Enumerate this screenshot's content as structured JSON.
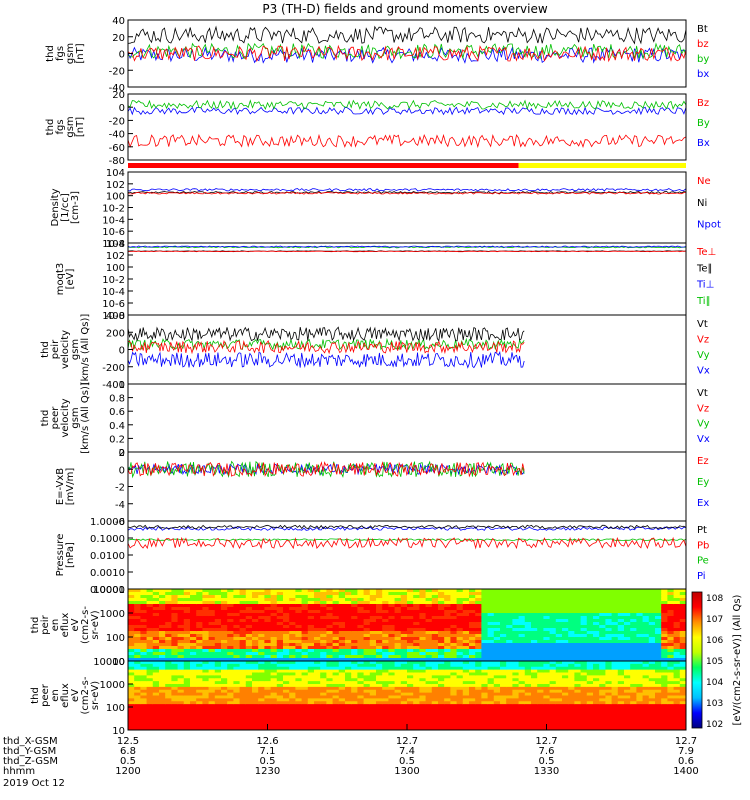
{
  "title": "P3 (TH-D) fields and ground moments overview",
  "chart_data": [
    {
      "type": "line",
      "ylabel": [
        "thd",
        "fgs",
        "gsm",
        "[nT]"
      ],
      "ylim": [
        -40,
        40
      ],
      "yticks": [
        40,
        20,
        0,
        -20,
        -40
      ],
      "series": [
        {
          "name": "Bt",
          "color": "#000000",
          "level": 22,
          "amp": 10
        },
        {
          "name": "bz",
          "color": "#ff0000",
          "level": 0,
          "amp": 9
        },
        {
          "name": "by",
          "color": "#00c000",
          "level": 3,
          "amp": 9
        },
        {
          "name": "bx",
          "color": "#0000ff",
          "level": -2,
          "amp": 9
        }
      ]
    },
    {
      "type": "line",
      "ylabel": [
        "thd",
        "fgs",
        "gsm",
        "[nT]"
      ],
      "ylim": [
        -90,
        20
      ],
      "yticks": [
        20,
        0,
        -20,
        -40,
        -60,
        -80
      ],
      "series": [
        {
          "name": "Bz",
          "color": "#ff0000",
          "level": -58,
          "amp": 10
        },
        {
          "name": "By",
          "color": "#00c000",
          "level": 2,
          "amp": 7
        },
        {
          "name": "Bx",
          "color": "#0000ff",
          "level": -8,
          "amp": 6
        }
      ]
    },
    {
      "type": "line",
      "ylabel": [
        "Density",
        "[1/cc]",
        "[cm-3]"
      ],
      "ylim_log": [
        -8,
        4
      ],
      "ytick_exponents": [
        4,
        2,
        0,
        -2,
        -4,
        -6,
        -8
      ],
      "series": [
        {
          "name": "Ne",
          "color": "#ff0000",
          "level": 0.4,
          "amp": 0.15
        },
        {
          "name": "Ni",
          "color": "#000000",
          "level": 0.55,
          "amp": 0.15
        },
        {
          "name": "Npot",
          "color": "#0000ff",
          "level": 1.0,
          "amp": 0.2
        }
      ]
    },
    {
      "type": "line",
      "ylabel": [
        "moqt3",
        "[eV]"
      ],
      "ylim_log": [
        -8,
        4
      ],
      "ytick_exponents": [
        4,
        2,
        0,
        -2,
        -4,
        -6,
        -8
      ],
      "series": [
        {
          "name": "Te⊥",
          "color": "#ff0000",
          "level": 2.6,
          "amp": 0.05
        },
        {
          "name": "Te∥",
          "color": "#000000",
          "level": 2.65,
          "amp": 0.05
        },
        {
          "name": "Ti⊥",
          "color": "#0000ff",
          "level": 3.4,
          "amp": 0.1
        },
        {
          "name": "Ti∥",
          "color": "#00c000",
          "level": 3.3,
          "amp": 0.1
        }
      ]
    },
    {
      "type": "line",
      "ylabel": [
        "thd",
        "peir",
        "velocity",
        "gsm",
        "[km/s (All Qs)]"
      ],
      "ylim": [
        -400,
        400
      ],
      "yticks": [
        400,
        200,
        0,
        -200,
        -400
      ],
      "series": [
        {
          "name": "Vt",
          "color": "#000000",
          "level": 180,
          "amp": 80
        },
        {
          "name": "Vz",
          "color": "#ff0000",
          "level": 30,
          "amp": 70
        },
        {
          "name": "Vy",
          "color": "#00c000",
          "level": 60,
          "amp": 60
        },
        {
          "name": "Vx",
          "color": "#0000ff",
          "level": -120,
          "amp": 90
        }
      ],
      "data_extent": [
        12.0,
        13.42
      ]
    },
    {
      "type": "line",
      "ylabel": [
        "thd",
        "peer",
        "velocity",
        "gsm",
        "[km/s (All Qs)]"
      ],
      "ylim": [
        0,
        1
      ],
      "yticks": [
        1.0,
        0.8,
        0.6,
        0.4,
        0.2,
        0.0
      ],
      "series": [
        {
          "name": "Vt",
          "color": "#000000"
        },
        {
          "name": "Vz",
          "color": "#ff0000"
        },
        {
          "name": "Vy",
          "color": "#00c000"
        },
        {
          "name": "Vx",
          "color": "#0000ff"
        }
      ],
      "empty": true
    },
    {
      "type": "line",
      "ylabel": [
        "E=-VxB",
        "[mV/m]"
      ],
      "ylim": [
        -6,
        2
      ],
      "yticks": [
        2,
        0,
        -2,
        -4,
        -6
      ],
      "series": [
        {
          "name": "Ez",
          "color": "#ff0000",
          "level": 0,
          "amp": 0.8
        },
        {
          "name": "Ey",
          "color": "#00c000",
          "level": 0,
          "amp": 0.9
        },
        {
          "name": "Ex",
          "color": "#0000ff",
          "level": 0,
          "amp": 0.6
        }
      ],
      "data_extent": [
        12.0,
        13.42
      ]
    },
    {
      "type": "line",
      "ylabel": [
        "Pressure",
        "[nPa]"
      ],
      "ylim_log": [
        -4,
        0
      ],
      "yticks": [
        "1.0000",
        "0.1000",
        "0.0100",
        "0.0010",
        "0.0001"
      ],
      "series": [
        {
          "name": "Pt",
          "color": "#000000",
          "level": -0.35,
          "amp": 0.1
        },
        {
          "name": "Pb",
          "color": "#ff0000",
          "level": -1.3,
          "amp": 0.3
        },
        {
          "name": "Pe",
          "color": "#00c000",
          "level": -1.1,
          "amp": 0.05
        },
        {
          "name": "Pi",
          "color": "#0000ff",
          "level": -0.45,
          "amp": 0.1
        }
      ]
    },
    {
      "type": "heatmap",
      "ylabel": [
        "thd",
        "peir",
        "en",
        "eflux",
        "eV",
        "(cm2-s-",
        "sr-eV)"
      ],
      "yticks": [
        10000,
        1000,
        100,
        10
      ]
    },
    {
      "type": "heatmap",
      "ylabel": [
        "thd",
        "peer",
        "en",
        "eflux",
        "eV",
        "(cm2-s-",
        "sr-eV)"
      ],
      "yticks": [
        10000,
        1000,
        100,
        10
      ]
    }
  ],
  "colorbar": {
    "label": "[eV/(cm2-s-sr-eV)] (All Qs)",
    "exponents": [
      8,
      7,
      6,
      5,
      4,
      3,
      2
    ]
  },
  "xaxis": {
    "time_range": [
      12.0,
      14.0
    ],
    "rows": [
      {
        "label": "thd_X-GSM",
        "values": [
          "12.5",
          "12.6",
          "12.7",
          "12.7",
          "12.7"
        ]
      },
      {
        "label": "thd_Y-GSM",
        "values": [
          "6.8",
          "7.1",
          "7.4",
          "7.6",
          "7.9"
        ]
      },
      {
        "label": "thd_Z-GSM",
        "values": [
          "0.5",
          "0.5",
          "0.5",
          "0.5",
          "0.6"
        ]
      },
      {
        "label": "hhmm",
        "values": [
          "1200",
          "1230",
          "1300",
          "1330",
          "1400"
        ]
      }
    ],
    "date": "2019 Oct 12"
  },
  "mode_bar": {
    "red_until": 13.4,
    "yellow_from": 13.4
  }
}
